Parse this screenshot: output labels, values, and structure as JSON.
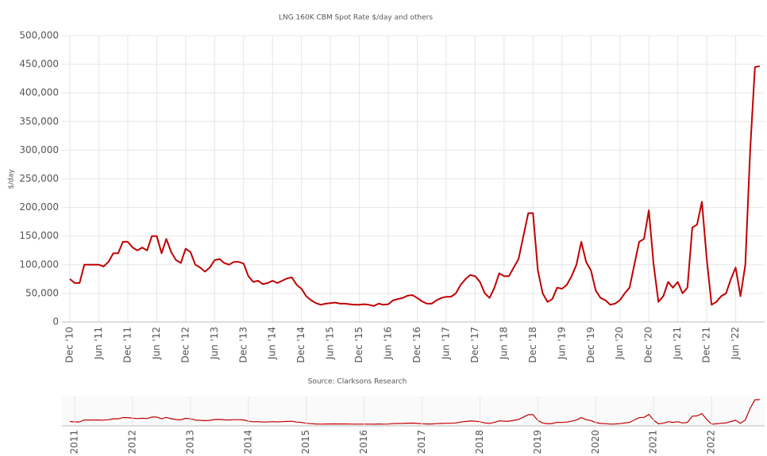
{
  "chart_data": {
    "type": "line",
    "title": "LNG 160K CBM Spot Rate $/day and others",
    "ylabel": "$/day",
    "source": "Source: Clarksons Research",
    "xlim": [
      "2010-12",
      "2022-12"
    ],
    "xticks": [
      {
        "value": "2010-12",
        "label": "Dec '10"
      },
      {
        "value": "2011-06",
        "label": "Jun '11"
      },
      {
        "value": "2011-12",
        "label": "Dec '11"
      },
      {
        "value": "2012-06",
        "label": "Jun '12"
      },
      {
        "value": "2012-12",
        "label": "Dec '12"
      },
      {
        "value": "2013-06",
        "label": "Jun '13"
      },
      {
        "value": "2013-12",
        "label": "Dec '13"
      },
      {
        "value": "2014-06",
        "label": "Jun '14"
      },
      {
        "value": "2014-12",
        "label": "Dec '14"
      },
      {
        "value": "2015-06",
        "label": "Jun '15"
      },
      {
        "value": "2015-12",
        "label": "Dec '15"
      },
      {
        "value": "2016-06",
        "label": "Jun '16"
      },
      {
        "value": "2016-12",
        "label": "Dec '16"
      },
      {
        "value": "2017-06",
        "label": "Jun '17"
      },
      {
        "value": "2017-12",
        "label": "Dec '17"
      },
      {
        "value": "2018-06",
        "label": "Jun '18"
      },
      {
        "value": "2018-12",
        "label": "Dec '18"
      },
      {
        "value": "2019-06",
        "label": "Jun '19"
      },
      {
        "value": "2019-12",
        "label": "Dec '19"
      },
      {
        "value": "2020-06",
        "label": "Jun '20"
      },
      {
        "value": "2020-12",
        "label": "Dec '20"
      },
      {
        "value": "2021-06",
        "label": "Jun '21"
      },
      {
        "value": "2021-12",
        "label": "Dec '21"
      },
      {
        "value": "2022-06",
        "label": "Jun '22"
      }
    ],
    "ylim": [
      0,
      500000
    ],
    "yticks": [
      0,
      {
        "value": 50000,
        "label": "50,000"
      },
      {
        "value": 100000,
        "label": "100,000"
      },
      {
        "value": 150000,
        "label": "150,000"
      },
      {
        "value": 200000,
        "label": "200,000"
      },
      {
        "value": 250000,
        "label": "250,000"
      },
      {
        "value": 300000,
        "label": "300,000"
      },
      {
        "value": 350000,
        "label": "350,000"
      },
      {
        "value": 400000,
        "label": "400,000"
      },
      {
        "value": 450000,
        "label": "450,000"
      },
      {
        "value": 500000,
        "label": "500,000"
      }
    ],
    "grid": true,
    "x": [
      "2010-12",
      "2011-01",
      "2011-02",
      "2011-03",
      "2011-04",
      "2011-05",
      "2011-06",
      "2011-07",
      "2011-08",
      "2011-09",
      "2011-10",
      "2011-11",
      "2011-12",
      "2012-01",
      "2012-02",
      "2012-03",
      "2012-04",
      "2012-05",
      "2012-06",
      "2012-07",
      "2012-08",
      "2012-09",
      "2012-10",
      "2012-11",
      "2012-12",
      "2013-01",
      "2013-02",
      "2013-03",
      "2013-04",
      "2013-05",
      "2013-06",
      "2013-07",
      "2013-08",
      "2013-09",
      "2013-10",
      "2013-11",
      "2013-12",
      "2014-01",
      "2014-02",
      "2014-03",
      "2014-04",
      "2014-05",
      "2014-06",
      "2014-07",
      "2014-08",
      "2014-09",
      "2014-10",
      "2014-11",
      "2014-12",
      "2015-01",
      "2015-02",
      "2015-03",
      "2015-04",
      "2015-05",
      "2015-06",
      "2015-07",
      "2015-08",
      "2015-09",
      "2015-10",
      "2015-11",
      "2015-12",
      "2016-01",
      "2016-02",
      "2016-03",
      "2016-04",
      "2016-05",
      "2016-06",
      "2016-07",
      "2016-08",
      "2016-09",
      "2016-10",
      "2016-11",
      "2016-12",
      "2017-01",
      "2017-02",
      "2017-03",
      "2017-04",
      "2017-05",
      "2017-06",
      "2017-07",
      "2017-08",
      "2017-09",
      "2017-10",
      "2017-11",
      "2017-12",
      "2018-01",
      "2018-02",
      "2018-03",
      "2018-04",
      "2018-05",
      "2018-06",
      "2018-07",
      "2018-08",
      "2018-09",
      "2018-10",
      "2018-11",
      "2018-12",
      "2019-01",
      "2019-02",
      "2019-03",
      "2019-04",
      "2019-05",
      "2019-06",
      "2019-07",
      "2019-08",
      "2019-09",
      "2019-10",
      "2019-11",
      "2019-12",
      "2020-01",
      "2020-02",
      "2020-03",
      "2020-04",
      "2020-05",
      "2020-06",
      "2020-07",
      "2020-08",
      "2020-09",
      "2020-10",
      "2020-11",
      "2020-12",
      "2021-01",
      "2021-02",
      "2021-03",
      "2021-04",
      "2021-05",
      "2021-06",
      "2021-07",
      "2021-08",
      "2021-09",
      "2021-10",
      "2021-11",
      "2021-12",
      "2022-01",
      "2022-02",
      "2022-03",
      "2022-04",
      "2022-05",
      "2022-06",
      "2022-07",
      "2022-08",
      "2022-09",
      "2022-10",
      "2022-11"
    ],
    "series": [
      {
        "name": "LNG 160K CBM Spot Rate",
        "color": "#c00000",
        "values": [
          75000,
          68000,
          68000,
          100000,
          100000,
          100000,
          100000,
          97000,
          105000,
          120000,
          120000,
          140000,
          140000,
          130000,
          125000,
          130000,
          125000,
          150000,
          150000,
          120000,
          145000,
          122000,
          108000,
          103000,
          128000,
          122000,
          100000,
          95000,
          88000,
          95000,
          108000,
          110000,
          103000,
          100000,
          105000,
          105000,
          102000,
          80000,
          70000,
          72000,
          66000,
          68000,
          72000,
          68000,
          72000,
          76000,
          78000,
          65000,
          58000,
          45000,
          38000,
          33000,
          30000,
          32000,
          33000,
          34000,
          32000,
          32000,
          31000,
          30000,
          30000,
          31000,
          30000,
          28000,
          32000,
          30000,
          31000,
          38000,
          40000,
          42000,
          46000,
          47000,
          42000,
          36000,
          32000,
          32000,
          38000,
          42000,
          44000,
          44000,
          50000,
          65000,
          75000,
          82000,
          80000,
          70000,
          50000,
          42000,
          60000,
          85000,
          80000,
          80000,
          95000,
          110000,
          150000,
          190000,
          190000,
          90000,
          50000,
          35000,
          40000,
          60000,
          58000,
          65000,
          80000,
          100000,
          140000,
          105000,
          90000,
          55000,
          42000,
          38000,
          30000,
          32000,
          38000,
          50000,
          60000,
          100000,
          140000,
          145000,
          195000,
          100000,
          35000,
          45000,
          70000,
          60000,
          70000,
          50000,
          60000,
          165000,
          170000,
          210000,
          110000,
          30000,
          35000,
          45000,
          50000,
          75000,
          95000,
          45000,
          100000,
          300000,
          445000,
          447000
        ]
      }
    ],
    "navigator": {
      "xticks": [
        {
          "value": "2011-01",
          "label": "2011"
        },
        {
          "value": "2012-01",
          "label": "2012"
        },
        {
          "value": "2013-01",
          "label": "2013"
        },
        {
          "value": "2014-01",
          "label": "2014"
        },
        {
          "value": "2015-01",
          "label": "2015"
        },
        {
          "value": "2016-01",
          "label": "2016"
        },
        {
          "value": "2017-01",
          "label": "2017"
        },
        {
          "value": "2018-01",
          "label": "2018"
        },
        {
          "value": "2019-01",
          "label": "2019"
        },
        {
          "value": "2020-01",
          "label": "2020"
        },
        {
          "value": "2021-01",
          "label": "2021"
        },
        {
          "value": "2022-01",
          "label": "2022"
        }
      ]
    }
  }
}
